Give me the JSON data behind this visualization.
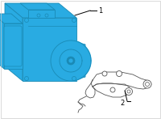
{
  "bg_color": "#ffffff",
  "border_color": "#cccccc",
  "part1_color": "#29abe2",
  "part1_edge_color": "#1a8ab5",
  "part2_color": "#ffffff",
  "part2_edge_color": "#555555",
  "label1": "1",
  "label2": "2",
  "label_fontsize": 6,
  "figsize": [
    2.0,
    1.47
  ],
  "dpi": 100
}
